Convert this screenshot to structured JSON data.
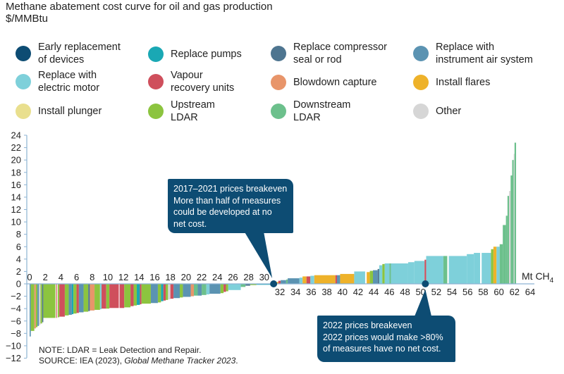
{
  "chart_data": {
    "type": "bar",
    "subtype": "marginal abatement cost curve (variable-width bars)",
    "title": "Methane abatement cost curve for oil and gas production",
    "ylabel": "$/MMBtu",
    "xlabel": "Mt CH4",
    "xlabel_main": "Mt CH",
    "xlabel_sub": "4",
    "ylim": [
      -12,
      24
    ],
    "xlim": [
      0,
      64
    ],
    "y_ticks": [
      "24",
      "22",
      "20",
      "18",
      "16",
      "14",
      "12",
      "10",
      "8",
      "6",
      "4",
      "2",
      "0",
      "−2",
      "−4",
      "−6",
      "−8",
      "−10",
      "−12"
    ],
    "y_tick_values": [
      24,
      22,
      20,
      18,
      16,
      14,
      12,
      10,
      8,
      6,
      4,
      2,
      0,
      -2,
      -4,
      -6,
      -8,
      -10,
      -12
    ],
    "x_ticks_upper": [
      "0",
      "2",
      "4",
      "6",
      "8",
      "10",
      "12",
      "14",
      "16",
      "18",
      "20",
      "22",
      "24",
      "26",
      "28",
      "30"
    ],
    "x_ticks_upper_values": [
      0,
      2,
      4,
      6,
      8,
      10,
      12,
      14,
      16,
      18,
      20,
      22,
      24,
      26,
      28,
      30
    ],
    "x_ticks_lower": [
      "32",
      "34",
      "36",
      "38",
      "40",
      "42",
      "44",
      "46",
      "48",
      "50",
      "52",
      "54",
      "56",
      "58",
      "60",
      "62",
      "64"
    ],
    "x_ticks_lower_values": [
      32,
      34,
      36,
      38,
      40,
      42,
      44,
      46,
      48,
      50,
      52,
      54,
      56,
      58,
      60,
      62,
      64
    ],
    "grid": false,
    "legend_position": "top",
    "categories": [
      {
        "key": "early",
        "name": "Early replacement\nof devices",
        "color": "#0d4c73"
      },
      {
        "key": "pumps",
        "name": "Replace pumps",
        "color": "#1aa8b4"
      },
      {
        "key": "compressor",
        "name": "Replace compressor\nseal or rod",
        "color": "#4e7590"
      },
      {
        "key": "instrument",
        "name": "Replace with\ninstrument air system",
        "color": "#5b93b2"
      },
      {
        "key": "electric",
        "name": "Replace with\nelectric motor",
        "color": "#7ed0da"
      },
      {
        "key": "vapour",
        "name": "Vapour\nrecovery units",
        "color": "#cf4f5c"
      },
      {
        "key": "blowdown",
        "name": "Blowdown capture",
        "color": "#e8956a"
      },
      {
        "key": "flares",
        "name": "Install flares",
        "color": "#eeb22a"
      },
      {
        "key": "plunger",
        "name": "Install plunger",
        "color": "#e9df8e"
      },
      {
        "key": "upstream",
        "name": "Upstream\nLDAR",
        "color": "#8cc43f"
      },
      {
        "key": "downstream",
        "name": "Downstream\nLDAR",
        "color": "#6cc08c"
      },
      {
        "key": "other",
        "name": "Other",
        "color": "#d6d6d6"
      }
    ],
    "segments": [
      {
        "x0": 0.0,
        "x1": 0.15,
        "y": -8.5,
        "cat": "instrument"
      },
      {
        "x0": 0.15,
        "x1": 0.6,
        "y": -7.6,
        "cat": "upstream"
      },
      {
        "x0": 0.6,
        "x1": 0.8,
        "y": -7.2,
        "cat": "blowdown"
      },
      {
        "x0": 0.8,
        "x1": 1.0,
        "y": -7.0,
        "cat": "upstream"
      },
      {
        "x0": 1.0,
        "x1": 1.2,
        "y": -6.8,
        "cat": "instrument"
      },
      {
        "x0": 1.2,
        "x1": 1.4,
        "y": -6.6,
        "cat": "other"
      },
      {
        "x0": 1.4,
        "x1": 1.6,
        "y": -6.4,
        "cat": "upstream"
      },
      {
        "x0": 1.6,
        "x1": 1.75,
        "y": -6.2,
        "cat": "compressor"
      },
      {
        "x0": 1.75,
        "x1": 3.3,
        "y": -5.5,
        "cat": "upstream"
      },
      {
        "x0": 3.4,
        "x1": 3.5,
        "y": -5.5,
        "cat": "vapour"
      },
      {
        "x0": 3.6,
        "x1": 3.8,
        "y": -5.4,
        "cat": "upstream"
      },
      {
        "x0": 3.8,
        "x1": 4.5,
        "y": -5.3,
        "cat": "vapour"
      },
      {
        "x0": 4.5,
        "x1": 5.0,
        "y": -5.1,
        "cat": "upstream"
      },
      {
        "x0": 5.0,
        "x1": 5.4,
        "y": -5.0,
        "cat": "instrument"
      },
      {
        "x0": 5.4,
        "x1": 5.6,
        "y": -4.9,
        "cat": "pumps"
      },
      {
        "x0": 5.6,
        "x1": 6.0,
        "y": -4.8,
        "cat": "upstream"
      },
      {
        "x0": 6.0,
        "x1": 6.3,
        "y": -4.7,
        "cat": "vapour"
      },
      {
        "x0": 6.3,
        "x1": 6.9,
        "y": -4.6,
        "cat": "instrument"
      },
      {
        "x0": 6.9,
        "x1": 7.5,
        "y": -4.5,
        "cat": "upstream"
      },
      {
        "x0": 7.5,
        "x1": 7.7,
        "y": -4.4,
        "cat": "compressor"
      },
      {
        "x0": 7.7,
        "x1": 8.3,
        "y": -4.3,
        "cat": "blowdown"
      },
      {
        "x0": 8.3,
        "x1": 9.0,
        "y": -4.2,
        "cat": "upstream"
      },
      {
        "x0": 9.0,
        "x1": 9.2,
        "y": -4.1,
        "cat": "electric"
      },
      {
        "x0": 9.2,
        "x1": 9.8,
        "y": -4.0,
        "cat": "vapour"
      },
      {
        "x0": 9.8,
        "x1": 10.2,
        "y": -4.0,
        "cat": "upstream"
      },
      {
        "x0": 10.2,
        "x1": 11.4,
        "y": -3.9,
        "cat": "vapour"
      },
      {
        "x0": 11.5,
        "x1": 12.1,
        "y": -3.9,
        "cat": "vapour"
      },
      {
        "x0": 12.1,
        "x1": 12.9,
        "y": -3.8,
        "cat": "upstream"
      },
      {
        "x0": 12.9,
        "x1": 13.3,
        "y": -3.6,
        "cat": "vapour"
      },
      {
        "x0": 13.3,
        "x1": 13.7,
        "y": -3.5,
        "cat": "upstream"
      },
      {
        "x0": 13.7,
        "x1": 14.1,
        "y": -3.4,
        "cat": "pumps"
      },
      {
        "x0": 14.1,
        "x1": 14.3,
        "y": -3.3,
        "cat": "vapour"
      },
      {
        "x0": 14.3,
        "x1": 15.5,
        "y": -3.2,
        "cat": "upstream"
      },
      {
        "x0": 15.5,
        "x1": 16.4,
        "y": -3.1,
        "cat": "instrument"
      },
      {
        "x0": 16.4,
        "x1": 16.8,
        "y": -3.0,
        "cat": "upstream"
      },
      {
        "x0": 16.8,
        "x1": 17.1,
        "y": -2.8,
        "cat": "pumps"
      },
      {
        "x0": 17.1,
        "x1": 17.4,
        "y": -2.7,
        "cat": "vapour"
      },
      {
        "x0": 17.4,
        "x1": 17.7,
        "y": -2.6,
        "cat": "upstream"
      },
      {
        "x0": 17.7,
        "x1": 18.0,
        "y": -2.5,
        "cat": "other"
      },
      {
        "x0": 18.0,
        "x1": 18.4,
        "y": -2.4,
        "cat": "vapour"
      },
      {
        "x0": 18.4,
        "x1": 19.2,
        "y": -2.3,
        "cat": "instrument"
      },
      {
        "x0": 19.2,
        "x1": 19.6,
        "y": -2.2,
        "cat": "upstream"
      },
      {
        "x0": 19.6,
        "x1": 20.6,
        "y": -2.1,
        "cat": "instrument"
      },
      {
        "x0": 20.6,
        "x1": 21.0,
        "y": -2.0,
        "cat": "blowdown"
      },
      {
        "x0": 21.0,
        "x1": 21.5,
        "y": -1.9,
        "cat": "downstream"
      },
      {
        "x0": 21.5,
        "x1": 22.0,
        "y": -1.9,
        "cat": "instrument"
      },
      {
        "x0": 22.0,
        "x1": 22.6,
        "y": -1.8,
        "cat": "downstream"
      },
      {
        "x0": 22.6,
        "x1": 23.0,
        "y": -1.7,
        "cat": "electric"
      },
      {
        "x0": 23.0,
        "x1": 24.4,
        "y": -1.6,
        "cat": "instrument"
      },
      {
        "x0": 24.4,
        "x1": 24.8,
        "y": -1.5,
        "cat": "upstream"
      },
      {
        "x0": 24.8,
        "x1": 25.1,
        "y": -1.3,
        "cat": "vapour"
      },
      {
        "x0": 25.1,
        "x1": 25.4,
        "y": -1.2,
        "cat": "upstream"
      },
      {
        "x0": 25.4,
        "x1": 27.0,
        "y": -1.0,
        "cat": "electric"
      },
      {
        "x0": 27.0,
        "x1": 27.6,
        "y": -0.5,
        "cat": "downstream"
      },
      {
        "x0": 27.6,
        "x1": 28.2,
        "y": -0.3,
        "cat": "compressor"
      },
      {
        "x0": 28.2,
        "x1": 29.0,
        "y": -0.2,
        "cat": "upstream"
      },
      {
        "x0": 29.0,
        "x1": 31.2,
        "y": -0.15,
        "cat": "pumps"
      },
      {
        "x0": 31.4,
        "x1": 31.8,
        "y": 0.3,
        "cat": "flares"
      },
      {
        "x0": 31.8,
        "x1": 32.1,
        "y": 0.5,
        "cat": "vapour"
      },
      {
        "x0": 32.1,
        "x1": 32.8,
        "y": 0.6,
        "cat": "instrument"
      },
      {
        "x0": 32.8,
        "x1": 33.0,
        "y": 0.7,
        "cat": "downstream"
      },
      {
        "x0": 33.0,
        "x1": 34.5,
        "y": 0.9,
        "cat": "instrument"
      },
      {
        "x0": 34.5,
        "x1": 34.9,
        "y": 1.0,
        "cat": "electric"
      },
      {
        "x0": 34.9,
        "x1": 35.4,
        "y": 1.2,
        "cat": "flares"
      },
      {
        "x0": 35.4,
        "x1": 35.9,
        "y": 1.2,
        "cat": "vapour"
      },
      {
        "x0": 35.9,
        "x1": 36.4,
        "y": 1.3,
        "cat": "electric"
      },
      {
        "x0": 36.4,
        "x1": 39.1,
        "y": 1.4,
        "cat": "flares"
      },
      {
        "x0": 39.1,
        "x1": 39.3,
        "y": 1.4,
        "cat": "vapour"
      },
      {
        "x0": 39.3,
        "x1": 39.7,
        "y": 1.4,
        "cat": "instrument"
      },
      {
        "x0": 39.7,
        "x1": 41.5,
        "y": 1.6,
        "cat": "flares"
      },
      {
        "x0": 41.5,
        "x1": 42.9,
        "y": 2.0,
        "cat": "electric"
      },
      {
        "x0": 43.1,
        "x1": 43.5,
        "y": 1.9,
        "cat": "flares"
      },
      {
        "x0": 43.5,
        "x1": 43.9,
        "y": 2.1,
        "cat": "upstream"
      },
      {
        "x0": 43.9,
        "x1": 44.5,
        "y": 2.2,
        "cat": "instrument"
      },
      {
        "x0": 44.5,
        "x1": 44.7,
        "y": 2.4,
        "cat": "compressor"
      },
      {
        "x0": 44.7,
        "x1": 45.1,
        "y": 3.0,
        "cat": "electric"
      },
      {
        "x0": 45.1,
        "x1": 45.4,
        "y": 3.2,
        "cat": "upstream"
      },
      {
        "x0": 45.4,
        "x1": 46.0,
        "y": 3.3,
        "cat": "electric"
      },
      {
        "x0": 46.0,
        "x1": 46.2,
        "y": 3.3,
        "cat": "downstream"
      },
      {
        "x0": 46.2,
        "x1": 48.4,
        "y": 3.3,
        "cat": "electric"
      },
      {
        "x0": 48.4,
        "x1": 49.2,
        "y": 3.5,
        "cat": "electric"
      },
      {
        "x0": 49.2,
        "x1": 50.5,
        "y": 3.7,
        "cat": "electric"
      },
      {
        "x0": 50.5,
        "x1": 50.7,
        "y": 3.9,
        "cat": "vapour"
      },
      {
        "x0": 50.7,
        "x1": 52.9,
        "y": 4.5,
        "cat": "electric"
      },
      {
        "x0": 52.9,
        "x1": 53.4,
        "y": 4.5,
        "cat": "downstream"
      },
      {
        "x0": 53.6,
        "x1": 55.9,
        "y": 4.5,
        "cat": "electric"
      },
      {
        "x0": 55.9,
        "x1": 56.8,
        "y": 4.8,
        "cat": "electric"
      },
      {
        "x0": 56.8,
        "x1": 57.6,
        "y": 5.0,
        "cat": "electric"
      },
      {
        "x0": 57.8,
        "x1": 59.0,
        "y": 5.0,
        "cat": "electric"
      },
      {
        "x0": 59.0,
        "x1": 59.3,
        "y": 5.6,
        "cat": "upstream"
      },
      {
        "x0": 59.3,
        "x1": 59.7,
        "y": 6.0,
        "cat": "flares"
      },
      {
        "x0": 59.7,
        "x1": 60.1,
        "y": 6.0,
        "cat": "electric"
      },
      {
        "x0": 60.1,
        "x1": 60.5,
        "y": 6.4,
        "cat": "downstream"
      },
      {
        "x0": 60.5,
        "x1": 60.9,
        "y": 9.5,
        "cat": "downstream"
      },
      {
        "x0": 60.9,
        "x1": 61.1,
        "y": 11.0,
        "cat": "downstream"
      },
      {
        "x0": 61.1,
        "x1": 61.3,
        "y": 14.2,
        "cat": "downstream"
      },
      {
        "x0": 61.3,
        "x1": 61.5,
        "y": 15.0,
        "cat": "other"
      },
      {
        "x0": 61.5,
        "x1": 61.7,
        "y": 17.5,
        "cat": "downstream"
      },
      {
        "x0": 61.7,
        "x1": 61.9,
        "y": 20.0,
        "cat": "downstream"
      },
      {
        "x0": 61.9,
        "x1": 62.0,
        "y": 21.0,
        "cat": "other"
      },
      {
        "x0": 62.0,
        "x1": 62.2,
        "y": 22.8,
        "cat": "downstream"
      }
    ],
    "annotations": [
      {
        "name": "breakeven-2017-2021",
        "x": 31.2,
        "y": 0,
        "lines": [
          "2017–2021 prices breakeven",
          "More than half of measures",
          "could be developed at no",
          "net cost."
        ]
      },
      {
        "name": "breakeven-2022",
        "x": 50.6,
        "y": 0,
        "lines": [
          "2022 prices breakeven",
          "2022 prices would make >80%",
          "of measures have no net cost."
        ]
      }
    ]
  },
  "colors": {
    "axis": "#8db3d3",
    "callout": "#0d4c73",
    "text": "#222222"
  },
  "notes": {
    "note": "NOTE: LDAR = Leak Detection and Repair.",
    "source_prefix": "SOURCE: IEA (2023), ",
    "source_title": "Global Methane Tracker 2023",
    "source_suffix": "."
  }
}
